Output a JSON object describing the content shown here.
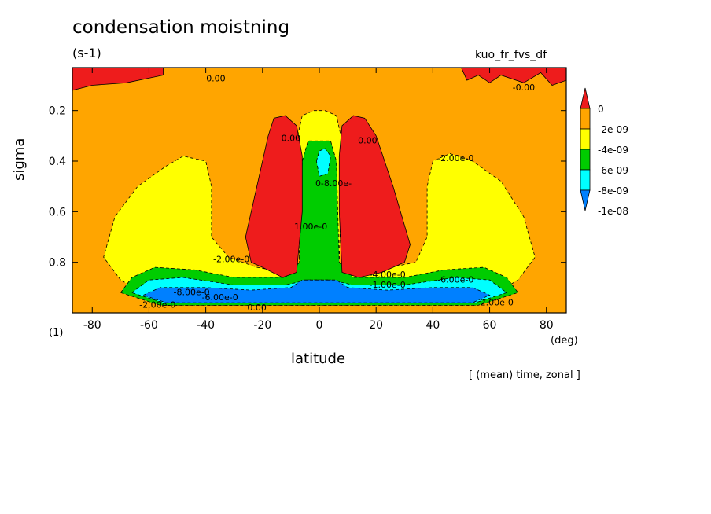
{
  "header": {
    "title": "condensation moistning",
    "units": "(s-1)",
    "run_name": "kuo_fr_fvs_df",
    "footer": "[ (mean) time, zonal ]"
  },
  "chart_data": {
    "type": "heatmap",
    "title": "condensation moistning",
    "xlabel": "latitude",
    "ylabel": "sigma",
    "x_unit": "(deg)",
    "y_unit_bottom": "(1)",
    "xlim": [
      -87,
      87
    ],
    "ylim": [
      1.0,
      0.03
    ],
    "x_ticks": [
      -80,
      -60,
      -40,
      -20,
      0,
      20,
      40,
      60,
      80
    ],
    "y_ticks": [
      0.2,
      0.4,
      0.6,
      0.8
    ],
    "legend": {
      "placement": "right",
      "levels": [
        {
          "label": "0",
          "color": "#ee1c1c"
        },
        {
          "label": "-2e-09",
          "color": "#ffa500"
        },
        {
          "label": "-4e-09",
          "color": "#ffff00"
        },
        {
          "label": "-6e-09",
          "color": "#00cc00"
        },
        {
          "label": "-8e-09",
          "color": "#00ffff"
        },
        {
          "label": "-1e-08",
          "color": "#0080ff"
        }
      ]
    },
    "background_level": "-2e-09 to 0",
    "regions": [
      {
        "level": "0",
        "color": "#ee1c1c",
        "points": [
          [
            -87,
            0.03
          ],
          [
            -55,
            0.03
          ],
          [
            -55,
            0.06
          ],
          [
            -68,
            0.09
          ],
          [
            -80,
            0.1
          ],
          [
            -87,
            0.12
          ]
        ]
      },
      {
        "level": "0",
        "color": "#ee1c1c",
        "points": [
          [
            50,
            0.03
          ],
          [
            87,
            0.03
          ],
          [
            87,
            0.08
          ],
          [
            82,
            0.1
          ],
          [
            78,
            0.05
          ],
          [
            72,
            0.09
          ],
          [
            64,
            0.06
          ],
          [
            60,
            0.09
          ],
          [
            56,
            0.06
          ],
          [
            52,
            0.08
          ]
        ]
      },
      {
        "level": "-2e-09",
        "color": "#ffff00",
        "points": [
          [
            -70,
            0.87
          ],
          [
            -76,
            0.78
          ],
          [
            -72,
            0.62
          ],
          [
            -64,
            0.5
          ],
          [
            -54,
            0.42
          ],
          [
            -48,
            0.38
          ],
          [
            -40,
            0.4
          ],
          [
            -38,
            0.5
          ],
          [
            -38,
            0.7
          ],
          [
            -32,
            0.78
          ],
          [
            -22,
            0.82
          ],
          [
            -12,
            0.84
          ],
          [
            -8,
            0.86
          ],
          [
            0,
            0.88
          ],
          [
            8,
            0.86
          ],
          [
            14,
            0.84
          ],
          [
            25,
            0.82
          ],
          [
            34,
            0.8
          ],
          [
            38,
            0.7
          ],
          [
            38,
            0.5
          ],
          [
            40,
            0.4
          ],
          [
            46,
            0.37
          ],
          [
            54,
            0.4
          ],
          [
            64,
            0.48
          ],
          [
            72,
            0.62
          ],
          [
            76,
            0.78
          ],
          [
            70,
            0.87
          ],
          [
            55,
            0.97
          ],
          [
            -55,
            0.97
          ]
        ]
      },
      {
        "level": "-2e-09",
        "color": "#ffff00",
        "points": [
          [
            -8,
            0.32
          ],
          [
            -6,
            0.22
          ],
          [
            -2,
            0.2
          ],
          [
            2,
            0.2
          ],
          [
            6,
            0.22
          ],
          [
            8,
            0.32
          ],
          [
            7,
            0.8
          ],
          [
            -7,
            0.8
          ]
        ]
      },
      {
        "level": "-4e-09",
        "color": "#00cc00",
        "points": [
          [
            -70,
            0.92
          ],
          [
            -66,
            0.86
          ],
          [
            -58,
            0.82
          ],
          [
            -44,
            0.83
          ],
          [
            -30,
            0.86
          ],
          [
            -12,
            0.86
          ],
          [
            -7,
            0.8
          ],
          [
            -6,
            0.4
          ],
          [
            -4,
            0.32
          ],
          [
            4,
            0.32
          ],
          [
            6,
            0.4
          ],
          [
            7,
            0.8
          ],
          [
            12,
            0.86
          ],
          [
            30,
            0.86
          ],
          [
            44,
            0.83
          ],
          [
            58,
            0.82
          ],
          [
            66,
            0.86
          ],
          [
            70,
            0.92
          ],
          [
            56,
            0.97
          ],
          [
            -56,
            0.97
          ]
        ]
      },
      {
        "level": "-6e-09",
        "color": "#00ffff",
        "points": [
          [
            -66,
            0.92
          ],
          [
            -60,
            0.87
          ],
          [
            -48,
            0.86
          ],
          [
            -30,
            0.89
          ],
          [
            -12,
            0.89
          ],
          [
            -4,
            0.87
          ],
          [
            4,
            0.87
          ],
          [
            12,
            0.89
          ],
          [
            30,
            0.89
          ],
          [
            48,
            0.86
          ],
          [
            60,
            0.87
          ],
          [
            66,
            0.92
          ],
          [
            55,
            0.96
          ],
          [
            -55,
            0.96
          ]
        ]
      },
      {
        "level": "-6e-09",
        "color": "#00ffff",
        "points": [
          [
            -1,
            0.4
          ],
          [
            0,
            0.36
          ],
          [
            2,
            0.35
          ],
          [
            4,
            0.38
          ],
          [
            3,
            0.45
          ],
          [
            0,
            0.46
          ]
        ]
      },
      {
        "level": "-8e-09",
        "color": "#0080ff",
        "points": [
          [
            -62,
            0.93
          ],
          [
            -56,
            0.9
          ],
          [
            -40,
            0.9
          ],
          [
            -24,
            0.91
          ],
          [
            -10,
            0.9
          ],
          [
            -6,
            0.87
          ],
          [
            6,
            0.87
          ],
          [
            10,
            0.9
          ],
          [
            24,
            0.91
          ],
          [
            40,
            0.9
          ],
          [
            54,
            0.9
          ],
          [
            60,
            0.93
          ],
          [
            54,
            0.96
          ],
          [
            -54,
            0.96
          ]
        ]
      },
      {
        "level": "0",
        "color": "#ee1c1c",
        "points": [
          [
            -20,
            0.82
          ],
          [
            -24,
            0.8
          ],
          [
            -26,
            0.7
          ],
          [
            -22,
            0.5
          ],
          [
            -18,
            0.3
          ],
          [
            -16,
            0.23
          ],
          [
            -12,
            0.22
          ],
          [
            -8,
            0.26
          ],
          [
            -6,
            0.38
          ],
          [
            -6,
            0.6
          ],
          [
            -8,
            0.84
          ],
          [
            -13,
            0.86
          ]
        ]
      },
      {
        "level": "0",
        "color": "#ee1c1c",
        "points": [
          [
            8,
            0.84
          ],
          [
            7,
            0.6
          ],
          [
            7,
            0.38
          ],
          [
            8,
            0.26
          ],
          [
            12,
            0.22
          ],
          [
            16,
            0.23
          ],
          [
            20,
            0.3
          ],
          [
            26,
            0.5
          ],
          [
            32,
            0.73
          ],
          [
            30,
            0.8
          ],
          [
            22,
            0.84
          ],
          [
            14,
            0.86
          ]
        ]
      }
    ],
    "contour_labels": [
      {
        "text": "-0.00",
        "x": -37,
        "y": 0.085
      },
      {
        "text": "-0.00",
        "x": 72,
        "y": 0.12
      },
      {
        "text": "0.00",
        "x": -10,
        "y": 0.32
      },
      {
        "text": "0.00",
        "x": 17,
        "y": 0.33
      },
      {
        "text": "-2.00e-0",
        "x": 48,
        "y": 0.4
      },
      {
        "text": "-2.00e-0",
        "x": -31,
        "y": 0.8
      },
      {
        "text": "1.00e-0",
        "x": -3,
        "y": 0.67
      },
      {
        "text": "0-8.00e-",
        "x": 5,
        "y": 0.5
      },
      {
        "text": "-4.00e-0",
        "x": 24,
        "y": 0.86
      },
      {
        "text": "-1.00e-0",
        "x": 24,
        "y": 0.9
      },
      {
        "text": "-6.00e-0",
        "x": 48,
        "y": 0.88
      },
      {
        "text": "-8.00e-0",
        "x": -45,
        "y": 0.93
      },
      {
        "text": "-6.00e-0",
        "x": -35,
        "y": 0.95
      },
      {
        "text": "-2.00e-0",
        "x": -57,
        "y": 0.98
      },
      {
        "text": "-2.00e-0",
        "x": 62,
        "y": 0.97
      },
      {
        "text": "0.00",
        "x": -22,
        "y": 0.99
      }
    ]
  }
}
